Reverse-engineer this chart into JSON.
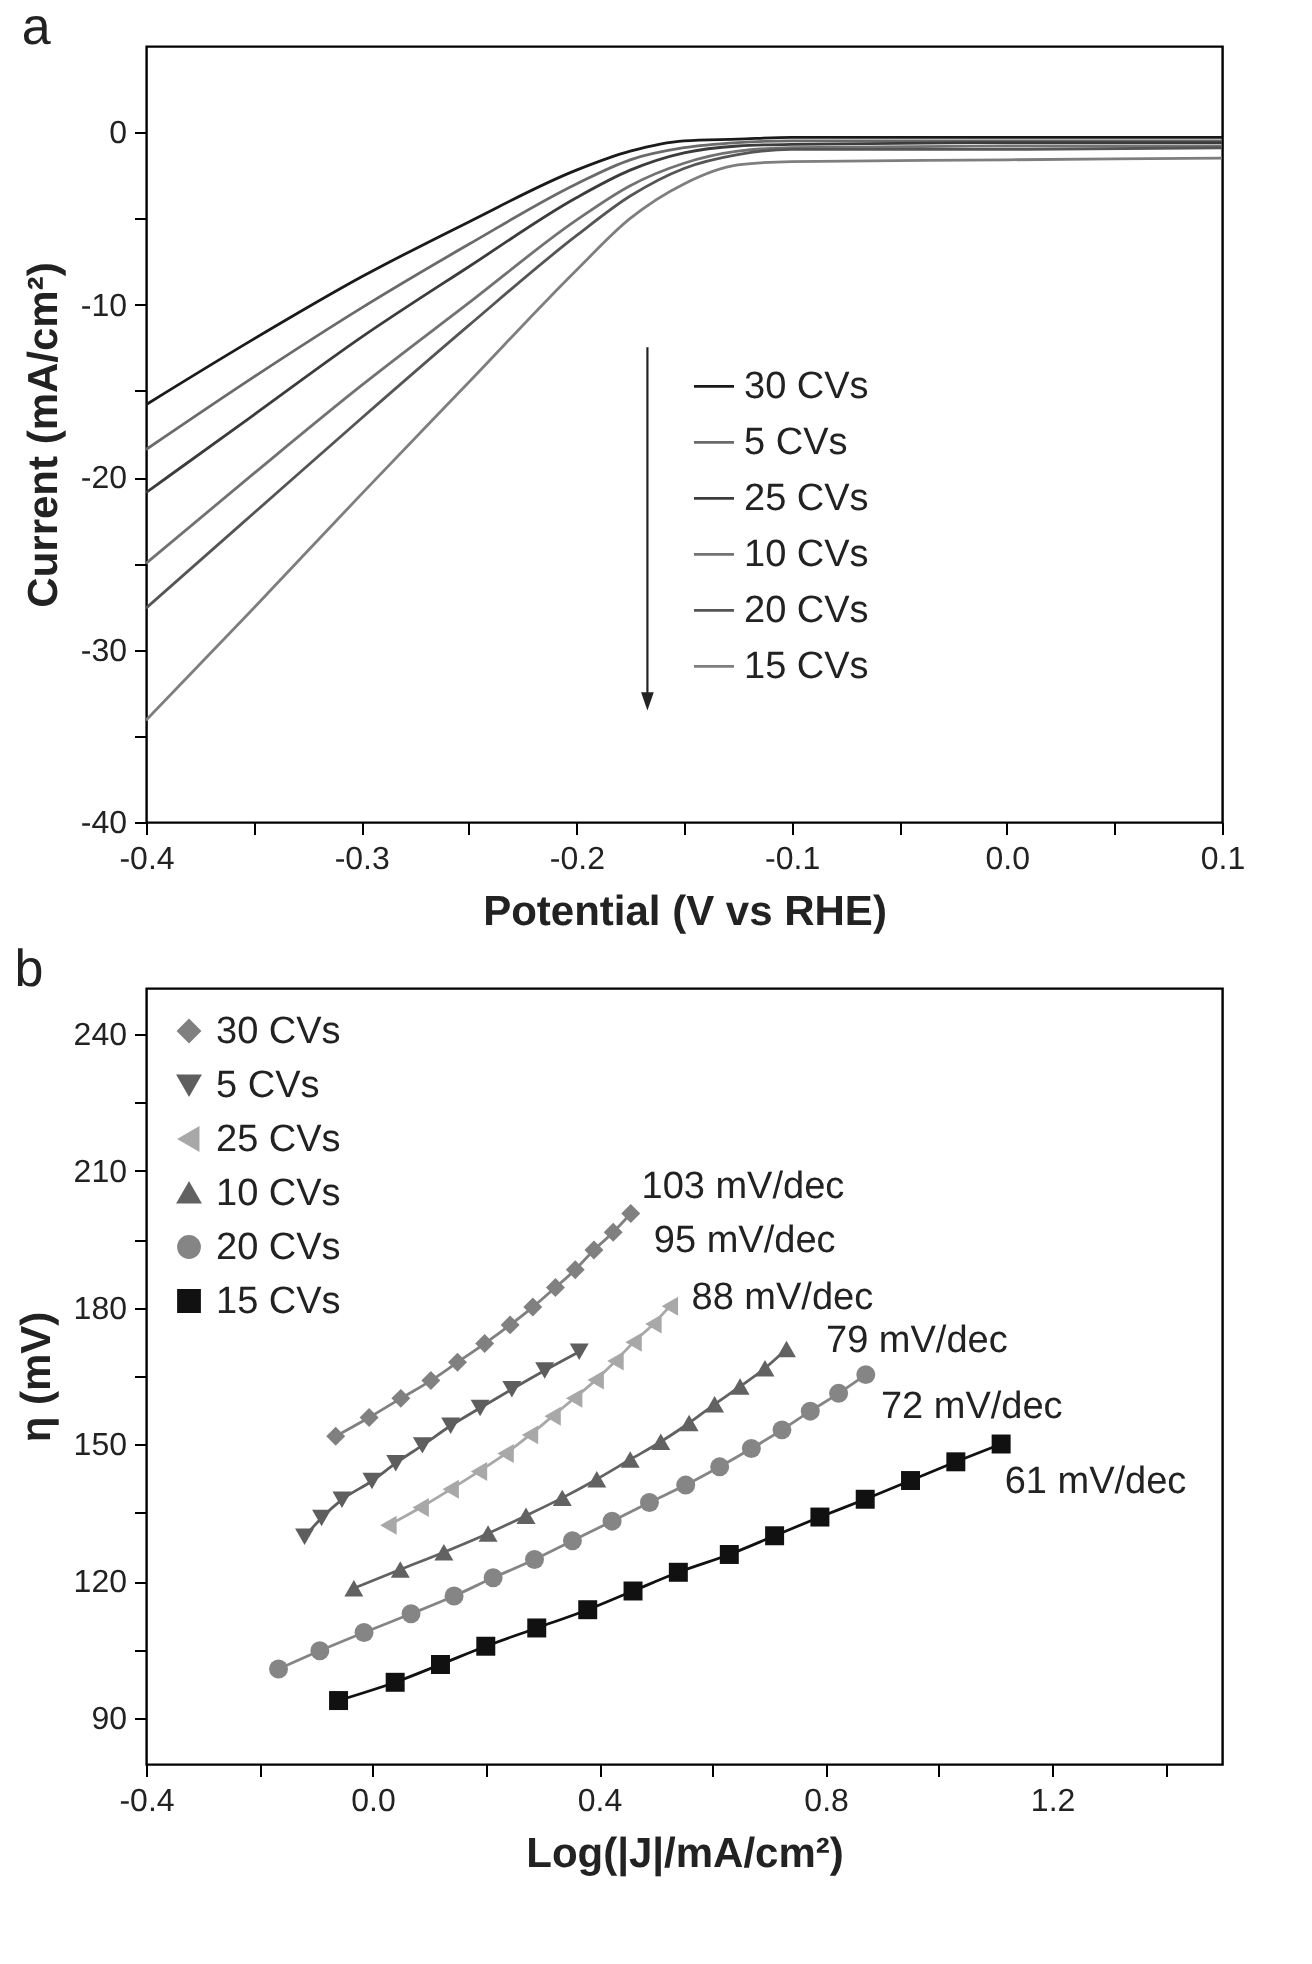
{
  "chart_data": [
    {
      "type": "line",
      "title": "a",
      "xlabel": "Potential (V vs RHE)",
      "ylabel": "Current (mA/cm²)",
      "x": [
        -0.4,
        -0.35,
        -0.3,
        -0.25,
        -0.2,
        -0.175,
        -0.15,
        -0.125,
        -0.1,
        0,
        0.1
      ],
      "series": [
        {
          "name": "30 CVs",
          "color": "#1a1a1a",
          "values": [
            -15.8,
            -12.0,
            -8.4,
            -5.2,
            -2.2,
            -1.1,
            -0.5,
            -0.4,
            -0.3,
            -0.3,
            -0.3
          ]
        },
        {
          "name": "5 CVs",
          "color": "#6a6a6a",
          "values": [
            -18.4,
            -14.2,
            -10.2,
            -6.5,
            -3.0,
            -1.6,
            -0.9,
            -0.6,
            -0.5,
            -0.5,
            -0.5
          ]
        },
        {
          "name": "25 CVs",
          "color": "#3c3c3c",
          "values": [
            -20.9,
            -16.4,
            -11.9,
            -7.8,
            -3.8,
            -2.2,
            -1.2,
            -0.8,
            -0.7,
            -0.6,
            -0.6
          ]
        },
        {
          "name": "10 CVs",
          "color": "#727272",
          "values": [
            -25.0,
            -19.8,
            -14.7,
            -9.9,
            -5.1,
            -3.1,
            -1.8,
            -1.1,
            -0.9,
            -0.8,
            -0.8
          ]
        },
        {
          "name": "20 CVs",
          "color": "#555555",
          "values": [
            -27.6,
            -22.1,
            -16.6,
            -11.2,
            -6.0,
            -3.7,
            -2.1,
            -1.3,
            -1.0,
            -1.0,
            -0.9
          ]
        },
        {
          "name": "15 CVs",
          "color": "#7e7e7e",
          "values": [
            -34.1,
            -27.6,
            -21.0,
            -14.5,
            -8.0,
            -5.0,
            -3.0,
            -1.9,
            -1.7,
            -1.6,
            -1.5
          ]
        }
      ],
      "xlim": [
        -0.4,
        0.1
      ],
      "ylim": [
        -40,
        5
      ],
      "xticks": [
        -0.4,
        {
          "value": -0.35,
          "label": null
        },
        -0.3,
        {
          "value": -0.25,
          "label": null
        },
        -0.2,
        {
          "value": -0.15,
          "label": null
        },
        -0.1,
        {
          "value": -0.05,
          "label": null
        },
        {
          "value": 0,
          "label": "0.0"
        },
        {
          "value": 0.05,
          "label": null
        },
        0.1
      ],
      "yticks": [
        -40,
        {
          "value": -35,
          "label": null
        },
        -30,
        {
          "value": -25,
          "label": null
        },
        -20,
        {
          "value": -15,
          "label": null
        },
        -10,
        {
          "value": -5,
          "label": null
        },
        0
      ],
      "legend": "right"
    },
    {
      "type": "line",
      "title": "b",
      "xlabel": "Log(|J|/mA/cm²)",
      "ylabel": "η (mV)",
      "series": [
        {
          "name": "30 CVs",
          "color": "#808080",
          "marker": "diamond",
          "x": [
            -0.065,
            -0.006,
            0.05,
            0.103,
            0.15,
            0.198,
            0.243,
            0.283,
            0.323,
            0.358,
            0.391,
            0.425,
            0.456
          ],
          "values": [
            151.8,
            155.9,
            160.1,
            164.0,
            168.0,
            172.1,
            176.2,
            180.1,
            184.4,
            188.3,
            192.6,
            196.5,
            200.6
          ]
        },
        {
          "name": "5 CVs",
          "color": "#5e5e5e",
          "marker": "triangle-down",
          "x": [
            -0.12,
            -0.09,
            -0.054,
            -0.001,
            0.041,
            0.088,
            0.138,
            0.19,
            0.246,
            0.304,
            0.365
          ],
          "values": [
            129.8,
            133.9,
            137.9,
            142.0,
            145.9,
            149.8,
            154.1,
            158.0,
            162.1,
            166.2,
            170.3
          ]
        },
        {
          "name": "25 CVs",
          "color": "#a8a8a8",
          "marker": "triangle-left",
          "x": [
            0.028,
            0.085,
            0.138,
            0.188,
            0.235,
            0.278,
            0.318,
            0.356,
            0.394,
            0.429,
            0.461,
            0.496,
            0.525
          ],
          "values": [
            132.3,
            136.2,
            140.2,
            144.1,
            148.0,
            152.1,
            156.2,
            160.1,
            164.1,
            168.3,
            172.4,
            176.4,
            180.3
          ]
        },
        {
          "name": "10 CVs",
          "color": "#626262",
          "marker": "triangle-up",
          "x": [
            -0.033,
            0.049,
            0.126,
            0.204,
            0.271,
            0.335,
            0.396,
            0.455,
            0.509,
            0.559,
            0.604,
            0.649,
            0.693,
            0.731
          ],
          "values": [
            118.5,
            122.6,
            126.4,
            130.5,
            134.4,
            138.3,
            142.4,
            146.7,
            150.6,
            154.7,
            158.8,
            162.7,
            166.7,
            170.9
          ]
        },
        {
          "name": "20 CVs",
          "color": "#858585",
          "marker": "circle",
          "x": [
            -0.166,
            -0.093,
            -0.015,
            0.068,
            0.144,
            0.213,
            0.286,
            0.353,
            0.423,
            0.489,
            0.553,
            0.613,
            0.669,
            0.723,
            0.773,
            0.823,
            0.871
          ],
          "values": [
            100.8,
            104.8,
            108.8,
            112.9,
            116.8,
            120.8,
            124.8,
            128.9,
            133.2,
            137.3,
            141.1,
            145.1,
            149.1,
            153.2,
            157.3,
            161.2,
            165.3
          ]
        },
        {
          "name": "15 CVs",
          "color": "#111111",
          "marker": "square",
          "x": [
            -0.06,
            0.04,
            0.12,
            0.2,
            0.29,
            0.38,
            0.46,
            0.54,
            0.63,
            0.71,
            0.79,
            0.87,
            0.95,
            1.03,
            1.11
          ],
          "values": [
            93.9,
            97.9,
            101.8,
            105.8,
            109.8,
            113.8,
            117.9,
            122.0,
            125.9,
            130.0,
            134.1,
            138.0,
            142.1,
            146.2,
            150.1
          ]
        }
      ],
      "annotations": [
        "103 mV/dec",
        "95 mV/dec",
        "88 mV/dec",
        "79 mV/dec",
        "72 mV/dec",
        "61 mV/dec"
      ],
      "xlim": [
        -0.4,
        1.5
      ],
      "ylim": [
        80,
        250
      ],
      "xticks": [
        -0.4,
        {
          "value": -0.2,
          "label": null
        },
        {
          "value": 0,
          "label": "0.0"
        },
        {
          "value": 0.2,
          "label": null
        },
        0.4,
        {
          "value": 0.6,
          "label": null
        },
        0.8,
        {
          "value": 1.0,
          "label": null
        },
        1.2,
        {
          "value": 1.4,
          "label": null
        }
      ],
      "yticks": [
        90,
        {
          "value": 105,
          "label": null
        },
        120,
        {
          "value": 135,
          "label": null
        },
        150,
        {
          "value": 165,
          "label": null
        },
        180,
        {
          "value": 195,
          "label": null
        },
        210,
        {
          "value": 225,
          "label": null
        },
        240
      ],
      "legend": "top left"
    }
  ]
}
